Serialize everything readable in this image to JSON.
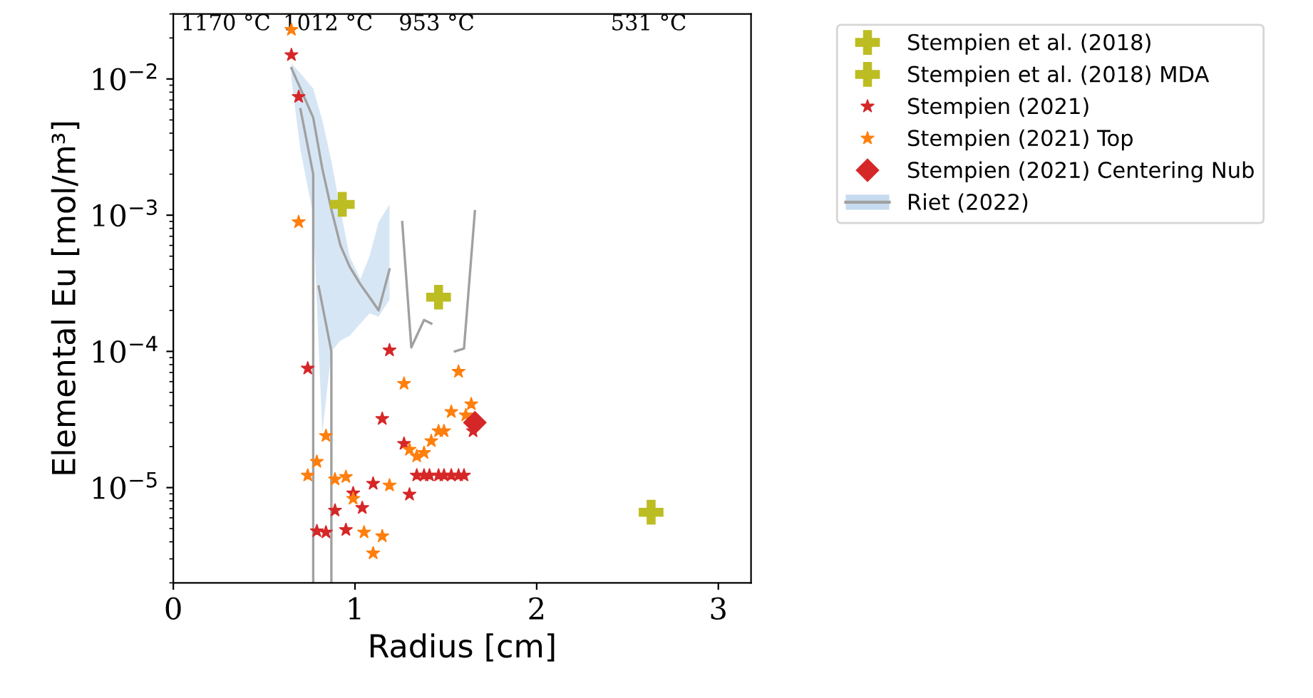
{
  "chart_data": {
    "type": "scatter",
    "xlabel": "Radius [cm]",
    "ylabel": "Elemental Eu [mol/m³]",
    "log": "y",
    "xlim": [
      0,
      3.18
    ],
    "xticks": [
      0,
      1,
      2,
      3
    ],
    "ylim": [
      2e-06,
      0.03
    ],
    "yticks": [
      {
        "value": 1e-05,
        "label": "10$^{−5}$"
      },
      {
        "value": 0.0001,
        "label": "10$^{−4}$"
      },
      {
        "value": 0.001,
        "label": "10$^{−3}$"
      },
      {
        "value": 0.01,
        "label": "10$^{−2}$"
      }
    ],
    "grid": false,
    "legend": "top right",
    "annotations": [
      "1170 °C",
      "1012 °C",
      "953 °C",
      "531 °C"
    ],
    "series": [
      {
        "name": "Stempien et al. (2018)",
        "marker": "cross",
        "color": "#bcbd22",
        "x": [
          0.93
        ],
        "values": [
          0.0012
        ]
      },
      {
        "name": "Stempien et al. (2018) MDA",
        "marker": "cross",
        "color": "#bcbd22",
        "x": [
          1.46,
          2.63
        ],
        "values": [
          0.00025,
          6.6e-06
        ]
      },
      {
        "name": "Stempien (2021)",
        "marker": "star",
        "color": "#d62728",
        "x": [
          0.65,
          0.69,
          0.74,
          1.19,
          1.15,
          1.27,
          1.1,
          0.99,
          1.04,
          0.89,
          0.79,
          0.84,
          0.95,
          1.3,
          1.34,
          1.38,
          1.41,
          1.46,
          1.49,
          1.53,
          1.57,
          1.6,
          1.65
        ],
        "values": [
          0.015,
          0.0074,
          7.5e-05,
          0.000102,
          3.2e-05,
          2.1e-05,
          1.07e-05,
          9.1e-06,
          7.1e-06,
          6.8e-06,
          4.8e-06,
          4.7e-06,
          4.9e-06,
          8.9e-06,
          1.23e-05,
          1.23e-05,
          1.23e-05,
          1.23e-05,
          1.23e-05,
          1.23e-05,
          1.23e-05,
          1.23e-05,
          2.6e-05
        ]
      },
      {
        "name": "Stempien (2021) Top",
        "marker": "star",
        "color": "#ff7f0e",
        "x": [
          0.65,
          0.69,
          1.27,
          1.57,
          1.64,
          1.53,
          1.61,
          1.46,
          1.49,
          1.42,
          1.38,
          1.34,
          1.3,
          0.84,
          0.79,
          0.74,
          0.89,
          0.95,
          1.19,
          0.99,
          1.05,
          1.15,
          1.1
        ],
        "values": [
          0.023,
          0.00089,
          5.8e-05,
          7.1e-05,
          4.1e-05,
          3.6e-05,
          3.4e-05,
          2.6e-05,
          2.6e-05,
          2.2e-05,
          1.8e-05,
          1.7e-05,
          1.9e-05,
          2.4e-05,
          1.55e-05,
          1.23e-05,
          1.15e-05,
          1.2e-05,
          1.04e-05,
          8.3e-06,
          4.7e-06,
          4.4e-06,
          3.3e-06
        ]
      },
      {
        "name": "Stempien (2021) Centering Nub",
        "marker": "diamond",
        "color": "#d62728",
        "x": [
          1.66
        ],
        "values": [
          3e-05
        ]
      },
      {
        "name": "Riet (2022)",
        "type": "line",
        "color": "#a0a0a0",
        "x": [
          0.65,
          0.7,
          0.77,
          0.82,
          0.87,
          0.92,
          0.97,
          1.03,
          1.08,
          1.13,
          1.19
        ],
        "values": [
          0.012,
          0.0085,
          0.0052,
          0.0022,
          0.0011,
          0.0006,
          0.00042,
          0.00031,
          0.00025,
          0.0002,
          0.0004
        ],
        "lower": [
          0.01,
          0.003,
          0.001,
          2.5e-05,
          0.0001,
          0.00012,
          0.00013,
          0.00016,
          0.00019,
          0.00018,
          0.00024
        ],
        "upper": [
          0.013,
          0.011,
          0.0085,
          0.005,
          0.0025,
          0.0011,
          0.0005,
          0.00034,
          0.0005,
          0.00089,
          0.0012
        ]
      },
      {
        "type": "line",
        "color": "#a0a0a0",
        "x": [
          0.7,
          0.77,
          0.77
        ],
        "values": [
          0.006,
          0.002,
          2e-06
        ]
      },
      {
        "type": "line",
        "color": "#a0a0a0",
        "x": [
          0.8,
          0.87,
          0.87
        ],
        "values": [
          0.0003,
          0.0001,
          2e-06
        ]
      },
      {
        "type": "line",
        "color": "#a0a0a0",
        "x": [
          1.26,
          1.31,
          1.38,
          1.42,
          1.46,
          1.55,
          1.6,
          1.66
        ],
        "values": [
          0.00089,
          0.000107,
          0.00017,
          0.00016,
          null,
          0.0001,
          0.000105,
          0.00107
        ]
      }
    ]
  }
}
